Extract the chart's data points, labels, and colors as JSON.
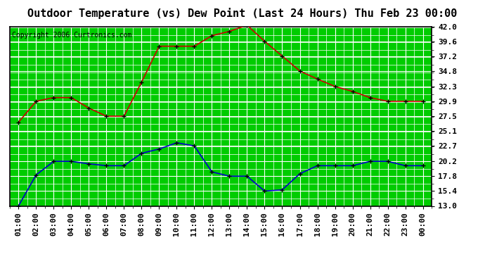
{
  "title": "Outdoor Temperature (vs) Dew Point (Last 24 Hours) Thu Feb 23 00:00",
  "copyright": "Copyright 2006 Curtronics.com",
  "x_labels": [
    "01:00",
    "02:00",
    "03:00",
    "04:00",
    "05:00",
    "06:00",
    "07:00",
    "08:00",
    "09:00",
    "10:00",
    "11:00",
    "12:00",
    "13:00",
    "14:00",
    "15:00",
    "16:00",
    "17:00",
    "18:00",
    "19:00",
    "20:00",
    "21:00",
    "22:00",
    "23:00",
    "00:00"
  ],
  "temp_data": [
    26.5,
    29.9,
    30.5,
    30.5,
    28.8,
    27.5,
    27.5,
    33.0,
    38.8,
    38.8,
    38.8,
    40.5,
    41.2,
    42.2,
    39.6,
    37.2,
    34.8,
    33.5,
    32.3,
    31.5,
    30.5,
    29.9,
    29.9,
    29.9
  ],
  "dew_data": [
    13.0,
    18.0,
    20.2,
    20.2,
    19.8,
    19.5,
    19.5,
    21.5,
    22.2,
    23.2,
    22.7,
    18.5,
    17.8,
    17.8,
    15.4,
    15.6,
    18.2,
    19.5,
    19.5,
    19.5,
    20.2,
    20.2,
    19.5,
    19.5
  ],
  "temp_color": "#cc0000",
  "dew_color": "#0000cc",
  "bg_color": "#ffffff",
  "plot_bg": "#00cc00",
  "grid_major_color": "#ffffff",
  "grid_minor_color": "#ffffff",
  "dashed_line_color": "#aaaaaa",
  "y_ticks": [
    13.0,
    15.4,
    17.8,
    20.2,
    22.7,
    25.1,
    27.5,
    29.9,
    32.3,
    34.8,
    37.2,
    39.6,
    42.0
  ],
  "y_min": 13.0,
  "y_max": 42.0,
  "title_fontsize": 11,
  "copyright_fontsize": 7,
  "tick_fontsize": 8,
  "marker": "+",
  "marker_size": 5,
  "line_width": 1.2
}
